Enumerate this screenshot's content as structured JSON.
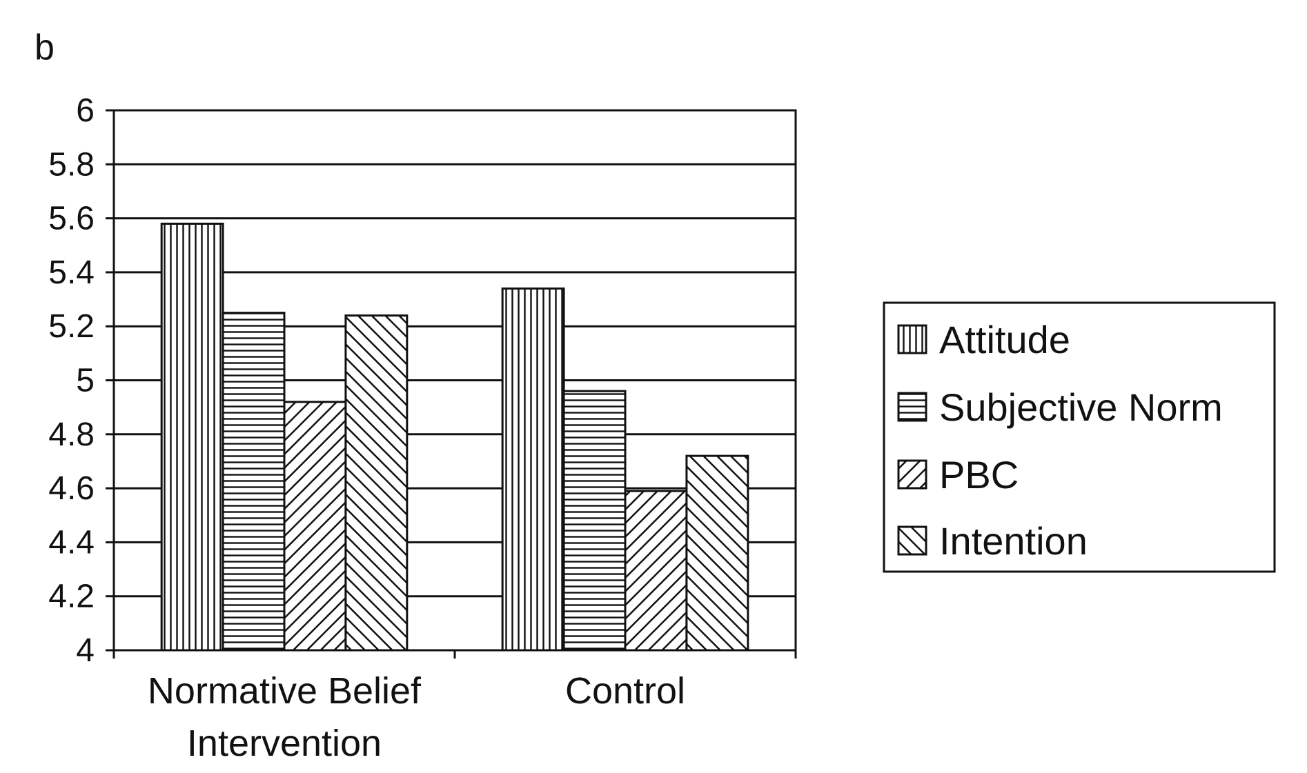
{
  "panel_label": "b",
  "chart_data": {
    "type": "bar",
    "title": "",
    "xlabel": "",
    "ylabel": "",
    "categories": [
      "Normative Belief Intervention",
      "Control"
    ],
    "category_lines": [
      [
        "Normative Belief",
        "Intervention"
      ],
      [
        "Control"
      ]
    ],
    "ylim": [
      4,
      6
    ],
    "yticks": [
      4,
      4.2,
      4.4,
      4.6,
      4.8,
      5,
      5.2,
      5.4,
      5.6,
      5.8,
      6
    ],
    "ytick_labels": [
      "4",
      "4.2",
      "4.4",
      "4.6",
      "4.8",
      "5",
      "5.2",
      "5.4",
      "5.6",
      "5.8",
      "6"
    ],
    "grid": true,
    "legend_position": "right",
    "series": [
      {
        "name": "Attitude",
        "pattern": "vertical-lines",
        "values": [
          5.58,
          5.34
        ]
      },
      {
        "name": "Subjective Norm",
        "pattern": "horizontal-lines",
        "values": [
          5.25,
          4.96
        ]
      },
      {
        "name": "PBC",
        "pattern": "diagonal-up",
        "values": [
          4.92,
          4.59
        ]
      },
      {
        "name": "Intention",
        "pattern": "diagonal-down",
        "values": [
          5.24,
          4.72
        ]
      }
    ]
  }
}
